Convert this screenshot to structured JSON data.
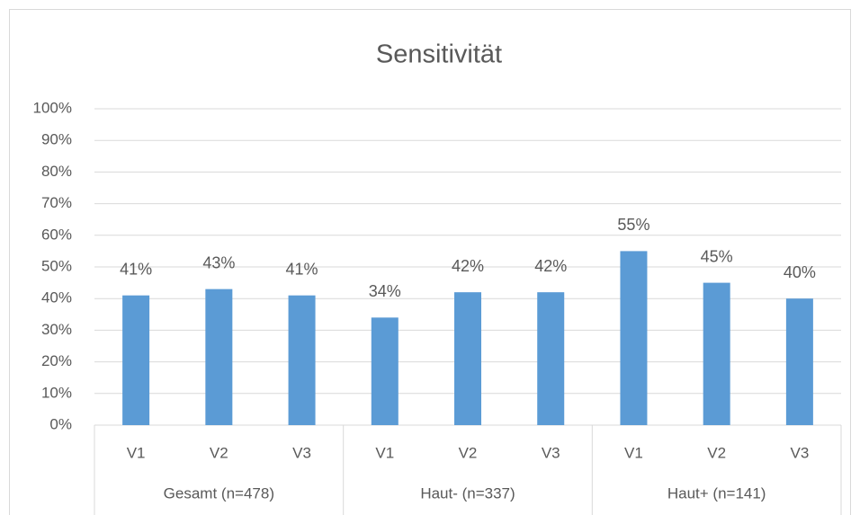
{
  "chart_data": {
    "type": "bar",
    "title": "Sensitivität",
    "categories": [
      "V1",
      "V2",
      "V3",
      "V1",
      "V2",
      "V3",
      "V1",
      "V2",
      "V3"
    ],
    "groups": [
      "Gesamt (n=478)",
      "Haut- (n=337)",
      "Haut+ (n=141)"
    ],
    "values": [
      41,
      43,
      41,
      34,
      42,
      42,
      55,
      45,
      40
    ],
    "value_labels": [
      "41%",
      "43%",
      "41%",
      "34%",
      "42%",
      "42%",
      "55%",
      "45%",
      "40%"
    ],
    "color": "#5b9bd5",
    "ylim": [
      0,
      100
    ],
    "yticks": [
      {
        "value": 0,
        "label": "0%"
      },
      {
        "value": 10,
        "label": "10%"
      },
      {
        "value": 20,
        "label": "20%"
      },
      {
        "value": 30,
        "label": "30%"
      },
      {
        "value": 40,
        "label": "40%"
      },
      {
        "value": 50,
        "label": "50%"
      },
      {
        "value": 60,
        "label": "60%"
      },
      {
        "value": 70,
        "label": "70%"
      },
      {
        "value": 80,
        "label": "80%"
      },
      {
        "value": 90,
        "label": "90%"
      },
      {
        "value": 100,
        "label": "100%"
      }
    ],
    "grid": true
  }
}
